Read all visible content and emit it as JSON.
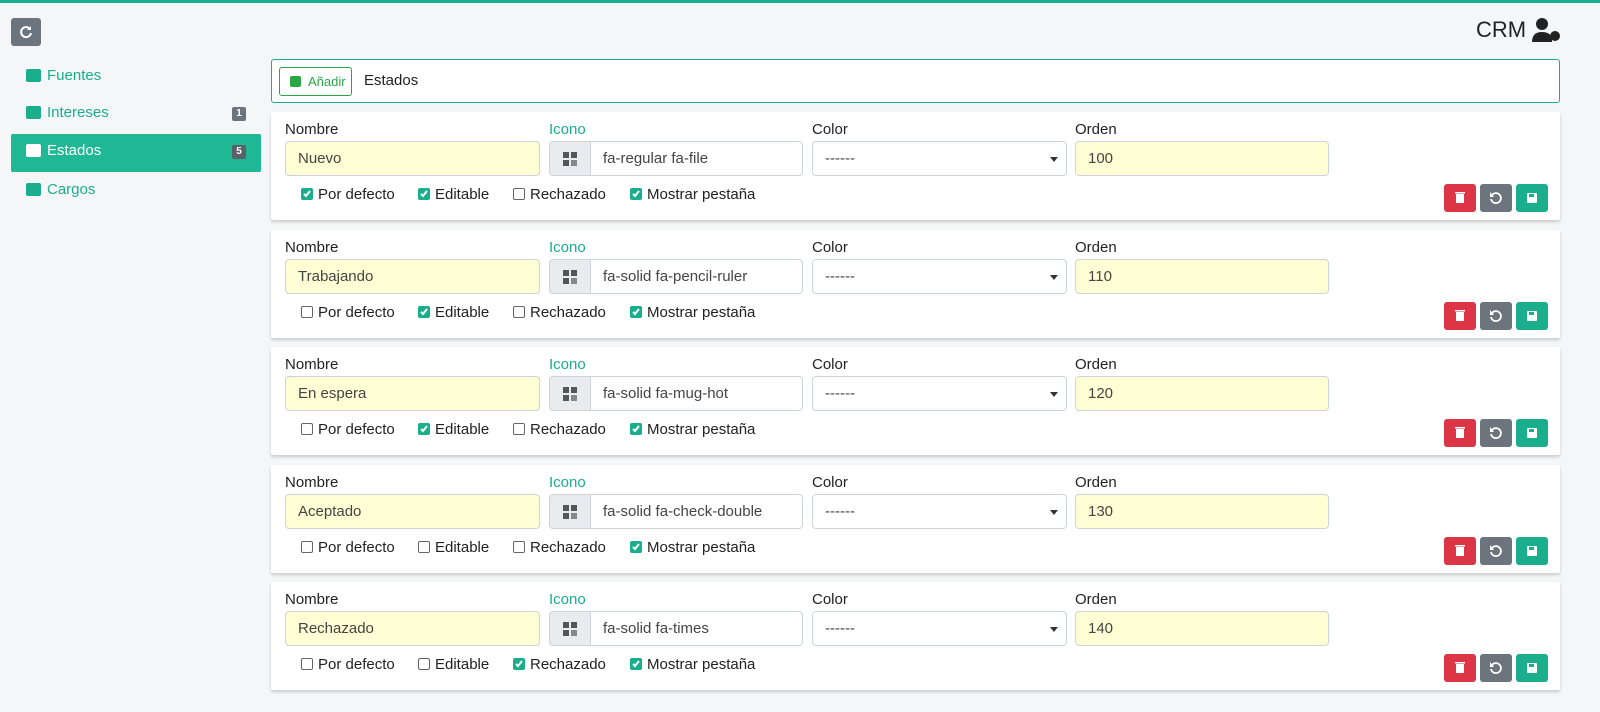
{
  "header": {
    "title": "CRM"
  },
  "sidebar": {
    "items": [
      {
        "label": "Fuentes"
      },
      {
        "label": "Intereses",
        "badge": 1
      },
      {
        "label": "Estados",
        "badge": 5,
        "active": true
      },
      {
        "label": "Cargos"
      }
    ]
  },
  "toolbar": {
    "add_button": "Añadir",
    "title": "Estados"
  },
  "fields": {
    "nombre": "Nombre",
    "icono": "Icono",
    "color": "Color",
    "orden": "Orden"
  },
  "checks": {
    "por_defecto": "Por defecto",
    "editable": "Editable",
    "rechazado": "Rechazado",
    "mostrar_pestana": "Mostrar pestaña"
  },
  "rows": [
    {
      "nombre": "Nuevo",
      "icono": "fa-regular fa-file",
      "color": "------",
      "orden": 100,
      "por_defecto": true,
      "editable": true,
      "rechazado": false,
      "mostrar_pestana": true
    },
    {
      "nombre": "Trabajando",
      "icono": "fa-solid fa-pencil-ruler",
      "color": "------",
      "orden": 110,
      "por_defecto": false,
      "editable": true,
      "rechazado": false,
      "mostrar_pestana": true
    },
    {
      "nombre": "En espera",
      "icono": "fa-solid fa-mug-hot",
      "color": "------",
      "orden": 120,
      "por_defecto": false,
      "editable": true,
      "rechazado": false,
      "mostrar_pestana": true
    },
    {
      "nombre": "Aceptado",
      "icono": "fa-solid fa-check-double",
      "color": "------",
      "orden": 130,
      "por_defecto": false,
      "editable": false,
      "rechazado": false,
      "mostrar_pestana": true
    },
    {
      "nombre": "Rechazado",
      "icono": "fa-solid fa-times",
      "color": "------",
      "orden": 140,
      "por_defecto": false,
      "editable": false,
      "rechazado": true,
      "mostrar_pestana": true
    }
  ]
}
